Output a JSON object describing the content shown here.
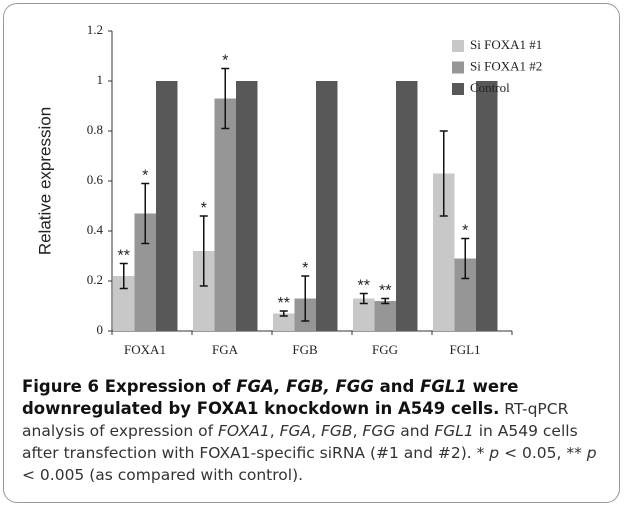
{
  "chart_data": {
    "type": "bar",
    "ylabel": "Relative expression",
    "categories": [
      "FOXA1",
      "FGA",
      "FGB",
      "FGG",
      "FGL1"
    ],
    "series": [
      {
        "name": "Si FOXA1 #1",
        "color": "#c8c8c8",
        "values": [
          0.22,
          0.32,
          0.07,
          0.13,
          0.63
        ],
        "errors": [
          0.05,
          0.14,
          0.01,
          0.02,
          0.17
        ],
        "labels": [
          "**",
          "*",
          "**",
          "**",
          null
        ]
      },
      {
        "name": "Si FOXA1 #2",
        "color": "#969696",
        "values": [
          0.47,
          0.93,
          0.13,
          0.12,
          0.29
        ],
        "errors": [
          0.12,
          0.12,
          0.09,
          0.01,
          0.08
        ],
        "labels": [
          "*",
          "*",
          "*",
          "**",
          "*"
        ]
      },
      {
        "name": "Control",
        "color": "#585858",
        "values": [
          1,
          1,
          1,
          1,
          1
        ]
      }
    ],
    "ylim": [
      0,
      1.2
    ],
    "yticks": [
      0,
      0.2,
      0.4,
      0.6,
      0.8,
      1,
      1.2
    ],
    "legend": "upper right"
  },
  "caption": {
    "title": [
      {
        "text": "Figure 6 Expression of "
      },
      {
        "text": "FGA, FGB, FGG",
        "italic": true
      },
      {
        "text": " and "
      },
      {
        "text": "FGL1",
        "italic": true
      },
      {
        "text": " were downregulated by FOXA1 knockdown in A549 cells."
      }
    ],
    "body": [
      {
        "text": "RT-qPCR analysis of expression of "
      },
      {
        "text": "FOXA1",
        "italic": true
      },
      {
        "text": ", "
      },
      {
        "text": "FGA",
        "italic": true
      },
      {
        "text": ", "
      },
      {
        "text": "FGB",
        "italic": true
      },
      {
        "text": ", "
      },
      {
        "text": "FGG",
        "italic": true
      },
      {
        "text": " and "
      },
      {
        "text": "FGL1",
        "italic": true
      },
      {
        "text": " in A549 cells after transfection with FOXA1-specific siRNA (#1 and #2). * "
      },
      {
        "text": "p",
        "italic": true
      },
      {
        "text": " < 0.05, ** "
      },
      {
        "text": "p",
        "italic": true
      },
      {
        "text": " < 0.005 (as compared with control)."
      }
    ]
  }
}
